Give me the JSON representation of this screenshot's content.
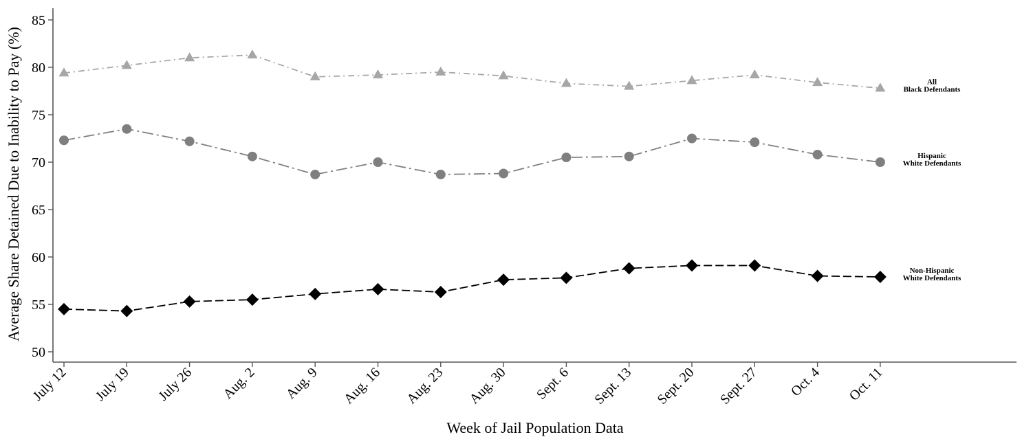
{
  "chart_data": {
    "type": "line",
    "title": "",
    "xlabel": "Week of Jail Population Data",
    "ylabel": "Average Share Detained Due to Inability to Pay (%)",
    "ylim": [
      49.5,
      86
    ],
    "yticks": [
      50,
      55,
      60,
      65,
      70,
      75,
      80,
      85
    ],
    "categories": [
      "July 12",
      "July 19",
      "July 26",
      "Aug. 2",
      "Aug. 9",
      "Aug. 16",
      "Aug. 23",
      "Aug. 30",
      "Sept. 6",
      "Sept. 13",
      "Sept. 20",
      "Sept. 27",
      "Oct. 4",
      "Oct. 11"
    ],
    "grid": false,
    "legend": "inline labels at right end of each line",
    "series": [
      {
        "label_lines": [
          "All",
          "Black Defendants"
        ],
        "marker": "triangle",
        "dash": "dash-dot",
        "color": "#a6a6a6",
        "values": [
          79.4,
          80.2,
          81.0,
          81.3,
          79.0,
          79.2,
          79.5,
          79.1,
          78.3,
          78.0,
          78.6,
          79.2,
          78.4,
          77.8
        ]
      },
      {
        "label_lines": [
          "Hispanic",
          "White Defendants"
        ],
        "marker": "circle",
        "dash": "long-dash-dot",
        "color": "#7f7f7f",
        "values": [
          72.3,
          73.5,
          72.2,
          70.6,
          68.7,
          70.0,
          68.7,
          68.8,
          70.5,
          70.6,
          72.5,
          72.1,
          70.8,
          70.0
        ]
      },
      {
        "label_lines": [
          "Non-Hispanic",
          "White Defendants"
        ],
        "marker": "diamond",
        "dash": "dashed",
        "color": "#000000",
        "values": [
          54.5,
          54.3,
          55.3,
          55.5,
          56.1,
          56.6,
          56.3,
          57.6,
          57.8,
          58.8,
          59.1,
          59.1,
          58.0,
          57.9
        ]
      }
    ]
  }
}
